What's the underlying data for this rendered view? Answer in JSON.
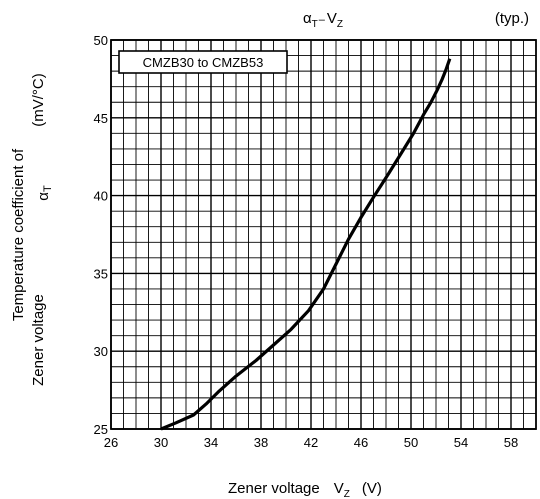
{
  "chart_data": {
    "type": "line",
    "title_main": "α",
    "title_main_sub": "T",
    "title_dash": "–",
    "title_v": "V",
    "title_v_sub": "Z",
    "qualifier": "(typ.)",
    "legend_box": "CMZB30 to CMZB53",
    "ylabel_line1": "Temperature coefficient of",
    "ylabel_line2": "Zener voltage",
    "ylabel_symbol": "α",
    "ylabel_symbol_sub": "T",
    "ylabel_unit": "(mV/°C)",
    "xlabel_text": "Zener voltage",
    "xlabel_symbol": "V",
    "xlabel_symbol_sub": "Z",
    "xlabel_unit": "(V)",
    "xlim": [
      26,
      60
    ],
    "ylim": [
      25,
      50
    ],
    "x_major_step": 4,
    "y_major_step": 5,
    "x_minor_step": 1,
    "y_minor_step": 1,
    "grid": true,
    "xticks": [
      "26",
      "30",
      "34",
      "38",
      "42",
      "46",
      "50",
      "54",
      "58"
    ],
    "yticks": [
      "25",
      "30",
      "35",
      "40",
      "45",
      "50"
    ],
    "series": [
      {
        "x": [
          30.0,
          31.2,
          32.6,
          33.6,
          34.6,
          36.0,
          37.6,
          39.0,
          40.4,
          41.8,
          43.0,
          44.0,
          45.0,
          46.0,
          47.0,
          48.2,
          49.2,
          50.2,
          51.0,
          51.6,
          52.1,
          52.5,
          52.8,
          53.1
        ],
        "y": [
          25.0,
          25.4,
          25.9,
          26.6,
          27.4,
          28.4,
          29.4,
          30.4,
          31.4,
          32.6,
          34.0,
          35.6,
          37.2,
          38.6,
          39.9,
          41.4,
          42.7,
          44.0,
          45.2,
          46.0,
          46.8,
          47.5,
          48.1,
          48.8
        ]
      }
    ]
  }
}
